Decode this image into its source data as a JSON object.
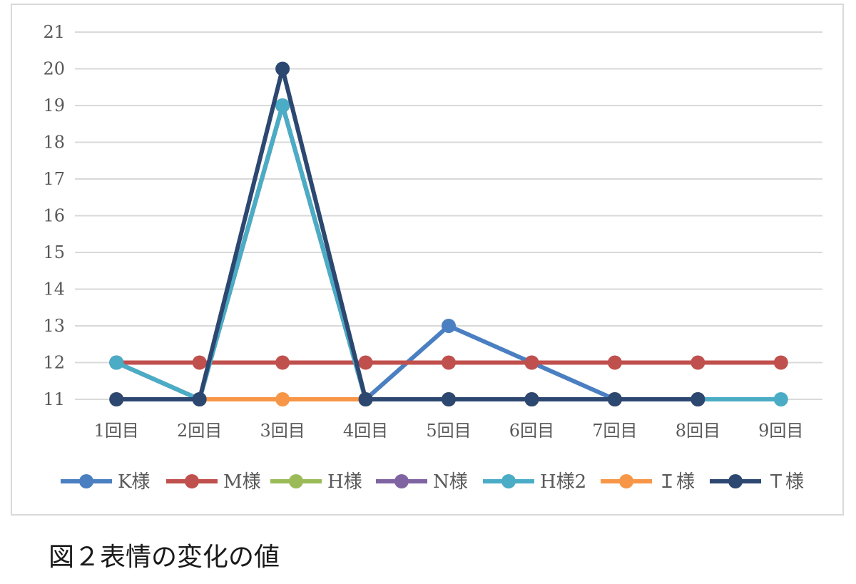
{
  "caption": "図２表情の変化の値",
  "chart_data": {
    "type": "line",
    "categories": [
      "1回目",
      "2回目",
      "3回目",
      "4回目",
      "5回目",
      "6回目",
      "7回目",
      "8回目",
      "9回目"
    ],
    "ylim": [
      11,
      21
    ],
    "yticks": [
      11,
      12,
      13,
      14,
      15,
      16,
      17,
      18,
      19,
      20,
      21
    ],
    "grid": true,
    "legend_position": "bottom",
    "series": [
      {
        "name": "K様",
        "color": "#4a7fc1",
        "values": [
          12,
          11,
          19,
          11,
          13,
          12,
          11,
          11,
          null
        ]
      },
      {
        "name": "M様",
        "color": "#c0504d",
        "values": [
          12,
          12,
          12,
          12,
          12,
          12,
          12,
          12,
          12
        ]
      },
      {
        "name": "H様",
        "color": "#9bbb59",
        "values": [
          12,
          11,
          19,
          11,
          11,
          11,
          11,
          11,
          null
        ]
      },
      {
        "name": "N様",
        "color": "#8064a2",
        "values": [
          12,
          11,
          19,
          11,
          11,
          11,
          11,
          11,
          null
        ]
      },
      {
        "name": "H様2",
        "color": "#4bacc6",
        "values": [
          12,
          11,
          19,
          11,
          11,
          11,
          11,
          11,
          11
        ]
      },
      {
        "name": "Ｉ様",
        "color": "#f79646",
        "values": [
          11,
          11,
          11,
          11,
          11,
          11,
          11,
          11,
          null
        ]
      },
      {
        "name": "Ｔ様",
        "color": "#2c4770",
        "values": [
          11,
          11,
          20,
          11,
          11,
          11,
          11,
          11,
          null
        ]
      }
    ]
  }
}
